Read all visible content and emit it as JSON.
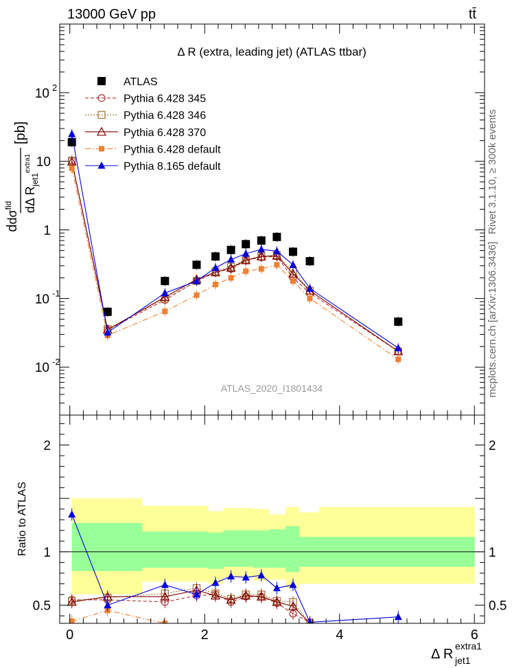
{
  "header": {
    "energy": "13000 GeV pp",
    "process": "tt̄"
  },
  "side_labels": {
    "upper": "Rivet 3.1.10, ≥ 300k events",
    "lower": "mcplots.cern.ch [arXiv:1306.3436]"
  },
  "chart_data": [
    {
      "type": "line",
      "title": "Δ R (extra, leading jet) (ATLAS ttbar)",
      "watermark": "ATLAS_2020_I1801434",
      "ylabel": "dσ^fid / dΔR(jet1, extra1) [pb]",
      "yscale": "log",
      "ylim": [
        0.002,
        1000
      ],
      "xlim": [
        -0.15,
        6.15
      ],
      "yticks": [
        {
          "v": 0.01,
          "label": "10",
          "exp": "-2"
        },
        {
          "v": 0.1,
          "label": "10",
          "exp": "-1"
        },
        {
          "v": 1,
          "label": "1",
          "exp": ""
        },
        {
          "v": 10,
          "label": "10",
          "exp": ""
        },
        {
          "v": 100,
          "label": "10",
          "exp": "2"
        }
      ],
      "x": [
        0.03,
        0.56,
        1.41,
        1.88,
        2.16,
        2.39,
        2.61,
        2.84,
        3.07,
        3.31,
        3.56,
        4.87
      ],
      "series": [
        {
          "name": "ATLAS",
          "color": "#000000",
          "marker": "square-filled",
          "line": "none",
          "values": [
            19,
            0.064,
            0.18,
            0.31,
            0.41,
            0.51,
            0.62,
            0.7,
            0.79,
            0.48,
            0.35,
            0.046
          ]
        },
        {
          "name": "Pythia 6.428 345",
          "color": "#b03030",
          "marker": "circle-open",
          "line": "dashed",
          "values": [
            10.3,
            0.035,
            0.095,
            0.18,
            0.24,
            0.27,
            0.36,
            0.4,
            0.41,
            0.2,
            0.12,
            0.017
          ]
        },
        {
          "name": "Pythia 6.428 346",
          "color": "#a07030",
          "marker": "square-open",
          "line": "dotted",
          "values": [
            10.2,
            0.036,
            0.1,
            0.18,
            0.25,
            0.29,
            0.37,
            0.41,
            0.43,
            0.25,
            0.13,
            0.017
          ]
        },
        {
          "name": "Pythia 6.428 370",
          "color": "#800000",
          "marker": "triangle-open",
          "line": "solid",
          "values": [
            9.9,
            0.035,
            0.105,
            0.19,
            0.24,
            0.28,
            0.36,
            0.41,
            0.42,
            0.23,
            0.13,
            0.017
          ]
        },
        {
          "name": "Pythia 6.428 default",
          "color": "#f08030",
          "marker": "square-filled-small",
          "line": "dashdot",
          "values": [
            7.9,
            0.029,
            0.065,
            0.112,
            0.16,
            0.2,
            0.25,
            0.27,
            0.31,
            0.18,
            0.1,
            0.013
          ]
        },
        {
          "name": "Pythia 8.165 default",
          "color": "#0000dd",
          "marker": "triangle-filled",
          "line": "solid",
          "values": [
            25,
            0.032,
            0.12,
            0.18,
            0.28,
            0.37,
            0.45,
            0.52,
            0.49,
            0.31,
            0.14,
            0.019
          ]
        }
      ]
    },
    {
      "type": "line",
      "ylabel": "Ratio to ATLAS",
      "xlabel": "Δ R(jet1, extra1)",
      "xlabel_main": "Δ R",
      "xlabel_sup": "extra1",
      "xlabel_sub": "jet1",
      "ylim": [
        0.33,
        2.28
      ],
      "xlim": [
        -0.15,
        6.15
      ],
      "xticks": [
        0,
        2,
        4,
        6
      ],
      "yticks": [
        0.5,
        1,
        2
      ],
      "bands": {
        "edges": [
          0.03,
          0.56,
          1.07,
          1.88,
          2.05,
          2.28,
          2.5,
          2.72,
          2.95,
          3.2,
          3.4,
          3.7,
          6
        ],
        "yellow_lo": [
          0.6,
          0.6,
          0.72,
          0.72,
          0.7,
          0.76,
          0.76,
          0.73,
          0.74,
          0.66,
          0.7,
          0.7
        ],
        "yellow_hi": [
          1.5,
          1.5,
          1.43,
          1.43,
          1.38,
          1.41,
          1.41,
          1.4,
          1.35,
          1.42,
          1.37,
          1.42
        ],
        "green_lo": [
          0.82,
          0.82,
          0.85,
          0.85,
          0.84,
          0.86,
          0.86,
          0.85,
          0.85,
          0.81,
          0.86,
          0.86
        ],
        "green_hi": [
          1.27,
          1.27,
          1.19,
          1.19,
          1.18,
          1.2,
          1.2,
          1.2,
          1.21,
          1.24,
          1.14,
          1.14
        ]
      },
      "series": [
        {
          "name": "Pythia 6.428 345",
          "values": [
            0.55,
            0.55,
            0.53,
            0.59,
            0.6,
            0.53,
            0.58,
            0.58,
            0.52,
            0.42,
            0.34,
            null
          ]
        },
        {
          "name": "Pythia 6.428 346",
          "values": [
            0.54,
            0.57,
            0.61,
            0.66,
            0.61,
            0.56,
            0.6,
            0.6,
            0.54,
            0.53,
            0.33,
            null
          ]
        },
        {
          "name": "Pythia 6.428 370",
          "values": [
            0.53,
            0.58,
            0.58,
            0.64,
            0.59,
            0.55,
            0.59,
            0.58,
            0.53,
            0.49,
            0.33,
            null
          ]
        },
        {
          "name": "Pythia 6.428 default",
          "values": [
            0.35,
            0.45,
            0.33,
            null,
            null,
            null,
            null,
            null,
            null,
            null,
            null,
            null
          ]
        },
        {
          "name": "Pythia 8.165 default",
          "values": [
            1.35,
            0.5,
            0.69,
            0.6,
            0.71,
            0.77,
            0.76,
            0.78,
            0.66,
            0.69,
            0.34,
            0.39
          ]
        }
      ]
    }
  ]
}
